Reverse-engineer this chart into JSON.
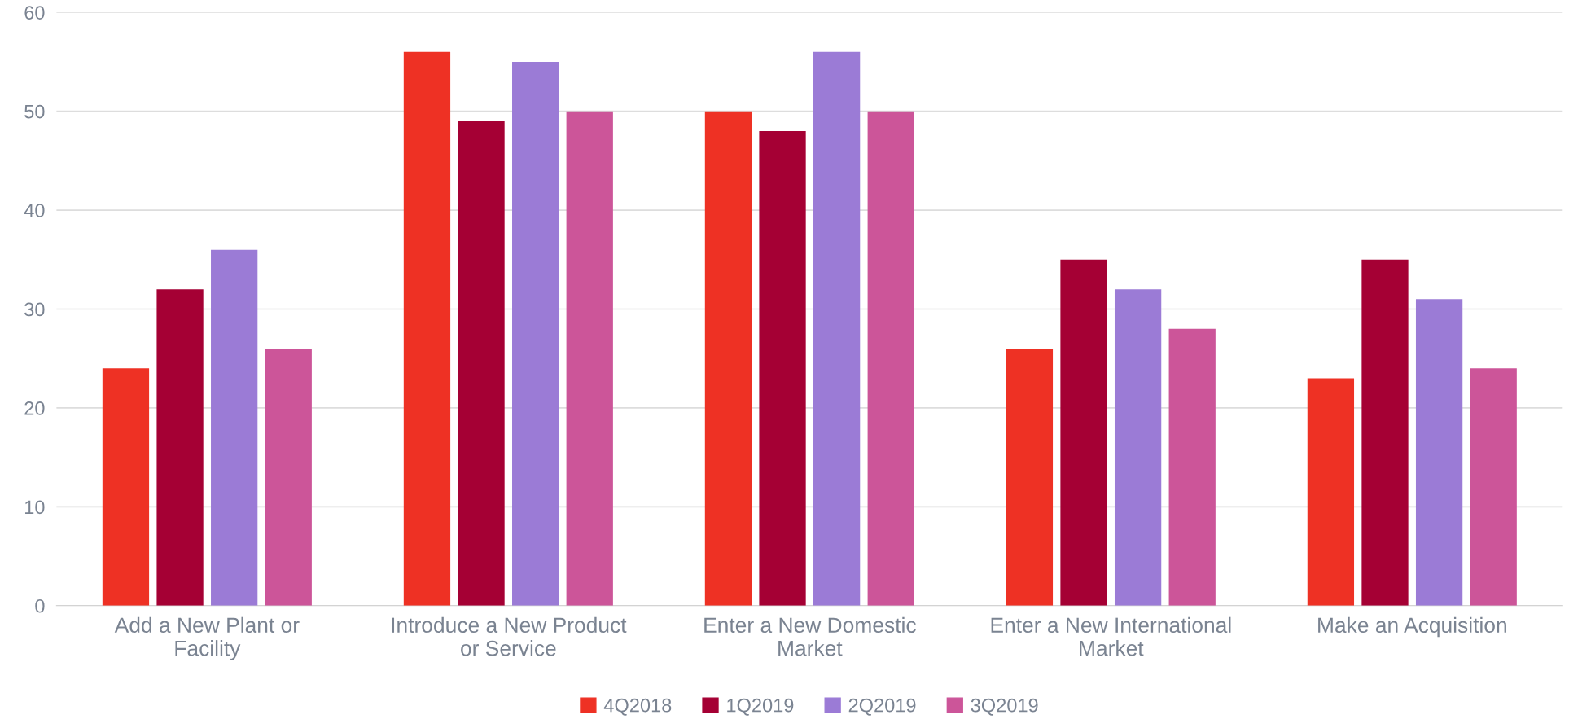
{
  "chart_data": {
    "type": "bar",
    "categories": [
      "Add a New Plant or\nFacility",
      "Introduce a New Product\nor Service",
      "Enter a New Domestic\nMarket",
      "Enter a New International\nMarket",
      "Make an Acquisition"
    ],
    "series": [
      {
        "name": "4Q2018",
        "color": "#ee3124",
        "values": [
          24,
          56,
          50,
          26,
          23
        ]
      },
      {
        "name": "1Q2019",
        "color": "#a50034",
        "values": [
          32,
          49,
          48,
          35,
          35
        ]
      },
      {
        "name": "2Q2019",
        "color": "#9b7bd6",
        "values": [
          36,
          55,
          56,
          32,
          31
        ]
      },
      {
        "name": "3Q2019",
        "color": "#cc5599",
        "values": [
          26,
          50,
          50,
          28,
          24
        ]
      }
    ],
    "ylim": [
      0,
      60
    ],
    "yticks": [
      0,
      10,
      20,
      30,
      40,
      50,
      60
    ],
    "grid": "y",
    "legend": "bottom"
  }
}
